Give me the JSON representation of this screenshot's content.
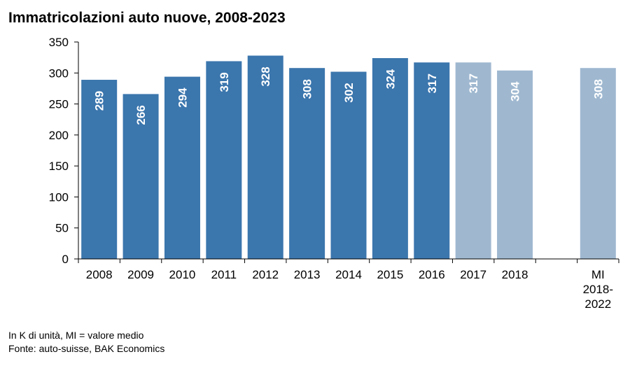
{
  "title": "Immatricolazioni auto nuove, 2008-2023",
  "notes": {
    "unit": "In K di unità, MI = valore medio",
    "source": "Fonte: auto-suisse, BAK Economics"
  },
  "chart_data": {
    "type": "bar",
    "title": "Immatricolazioni auto nuove, 2008-2023",
    "xlabel": "",
    "ylabel": "",
    "ylim": [
      0,
      350
    ],
    "yticks": [
      0,
      50,
      100,
      150,
      200,
      250,
      300,
      350
    ],
    "grid": false,
    "legend": "none",
    "colors": {
      "historical": "#3b76ad",
      "recent": "#9fb8d0",
      "axis": "#000000",
      "label": "#ffffff"
    },
    "bars": [
      {
        "category": "2008",
        "value": 289,
        "label": "289",
        "group": "historical"
      },
      {
        "category": "2009",
        "value": 266,
        "label": "266",
        "group": "historical"
      },
      {
        "category": "2010",
        "value": 294,
        "label": "294",
        "group": "historical"
      },
      {
        "category": "2011",
        "value": 319,
        "label": "319",
        "group": "historical"
      },
      {
        "category": "2012",
        "value": 328,
        "label": "328",
        "group": "historical"
      },
      {
        "category": "2013",
        "value": 308,
        "label": "308",
        "group": "historical"
      },
      {
        "category": "2014",
        "value": 302,
        "label": "302",
        "group": "historical"
      },
      {
        "category": "2015",
        "value": 324,
        "label": "324",
        "group": "historical"
      },
      {
        "category": "2016",
        "value": 317,
        "label": "317",
        "group": "historical"
      },
      {
        "category": "2017",
        "value": 317,
        "label": "317",
        "group": "recent"
      },
      {
        "category": "2018",
        "value": 304,
        "label": "304",
        "group": "recent"
      },
      {
        "category": "",
        "value": null,
        "label": "",
        "group": "gap"
      },
      {
        "category": "MI\n2018-\n2022",
        "value": 308,
        "label": "308",
        "group": "recent"
      }
    ]
  }
}
